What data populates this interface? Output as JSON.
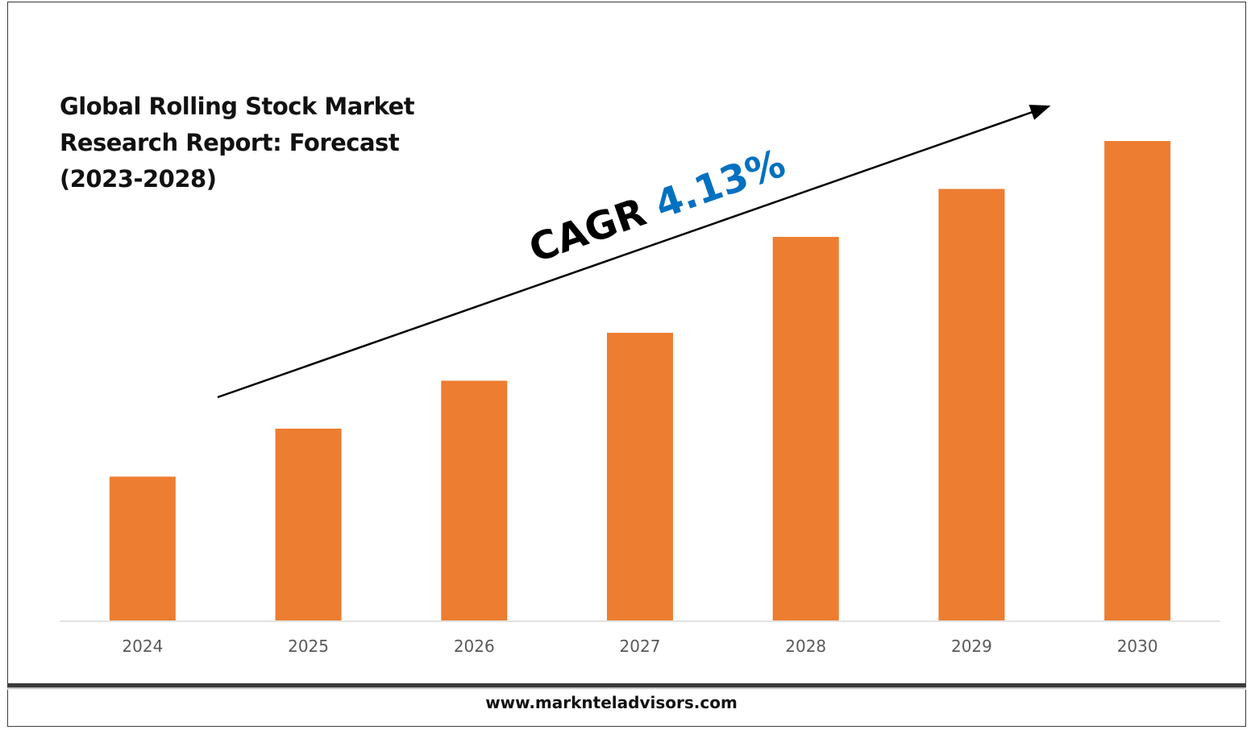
{
  "chart_data": {
    "type": "bar",
    "title_lines": [
      "Global Rolling Stock Market",
      "Research Report: Forecast",
      "(2023-2028)"
    ],
    "categories": [
      "2024",
      "2025",
      "2026",
      "2027",
      "2028",
      "2029",
      "2030"
    ],
    "values": [
      30,
      40,
      50,
      60,
      80,
      90,
      100
    ],
    "bar_color": "#ED7D31",
    "axis_color": "#d9d9d9",
    "ylim": [
      0,
      100
    ],
    "grid": false,
    "annotation": {
      "label": "CAGR ",
      "value": "4.13%",
      "label_color": "#000000",
      "value_color": "#0070C0"
    }
  },
  "footer": {
    "website": "www.marknteladvisors.com"
  }
}
